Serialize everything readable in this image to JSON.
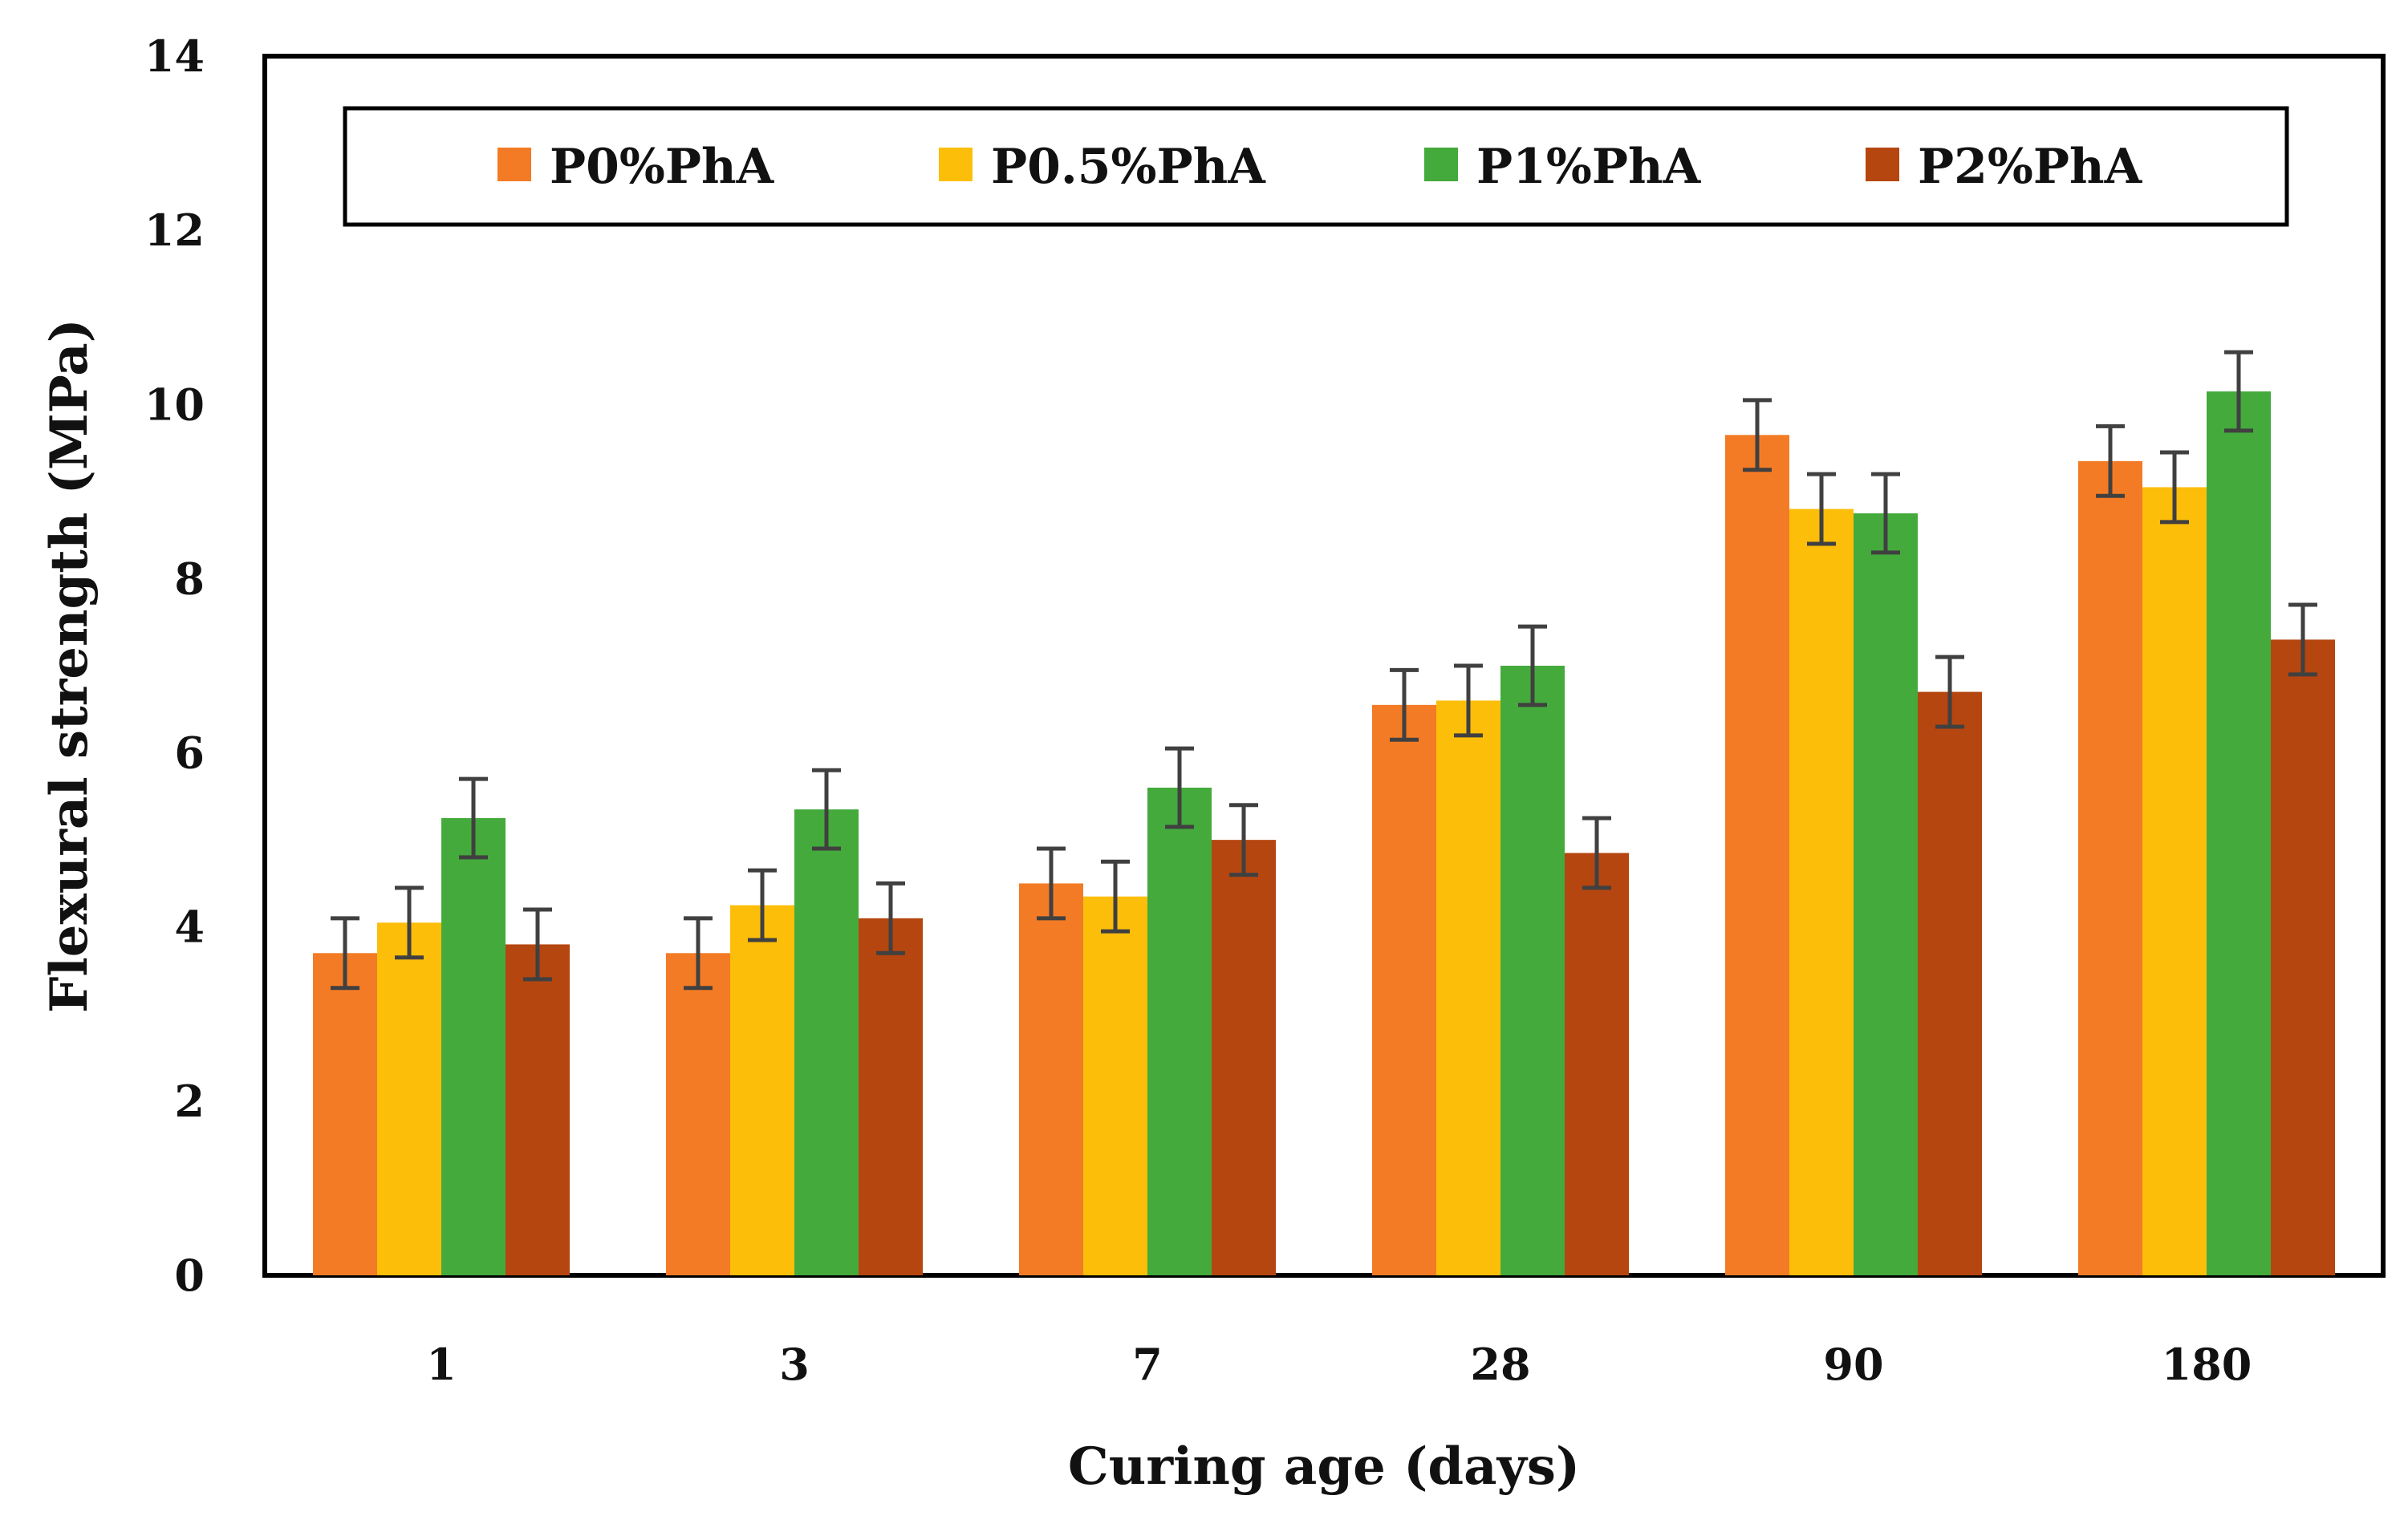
{
  "chart_data": {
    "type": "bar",
    "title": "",
    "xlabel": "Curing age (days)",
    "ylabel": "Flexural strength (MPa)",
    "ylim": [
      0,
      14
    ],
    "yticks": [
      "0",
      "2",
      "4",
      "6",
      "8",
      "10",
      "12",
      "14"
    ],
    "grid": false,
    "legend_position": "top",
    "categories": [
      "1",
      "3",
      "7",
      "28",
      "90",
      "180"
    ],
    "series": [
      {
        "name": "P0%PhA",
        "color": "#F47B25",
        "values": [
          3.7,
          3.7,
          4.5,
          6.55,
          9.65,
          9.35
        ],
        "errors": [
          0.4,
          0.4,
          0.4,
          0.4,
          0.4,
          0.4
        ]
      },
      {
        "name": "P0.5%PhA",
        "color": "#FDBE0A",
        "values": [
          4.05,
          4.25,
          4.35,
          6.6,
          8.8,
          9.05
        ],
        "errors": [
          0.4,
          0.4,
          0.4,
          0.4,
          0.4,
          0.4
        ]
      },
      {
        "name": "P1%PhA",
        "color": "#44AA3C",
        "values": [
          5.25,
          5.35,
          5.6,
          7.0,
          8.75,
          10.15
        ],
        "errors": [
          0.45,
          0.45,
          0.45,
          0.45,
          0.45,
          0.45
        ]
      },
      {
        "name": "P2%PhA",
        "color": "#B5460F",
        "values": [
          3.8,
          4.1,
          5.0,
          4.85,
          6.7,
          7.3
        ],
        "errors": [
          0.4,
          0.4,
          0.4,
          0.4,
          0.4,
          0.4
        ]
      }
    ]
  }
}
